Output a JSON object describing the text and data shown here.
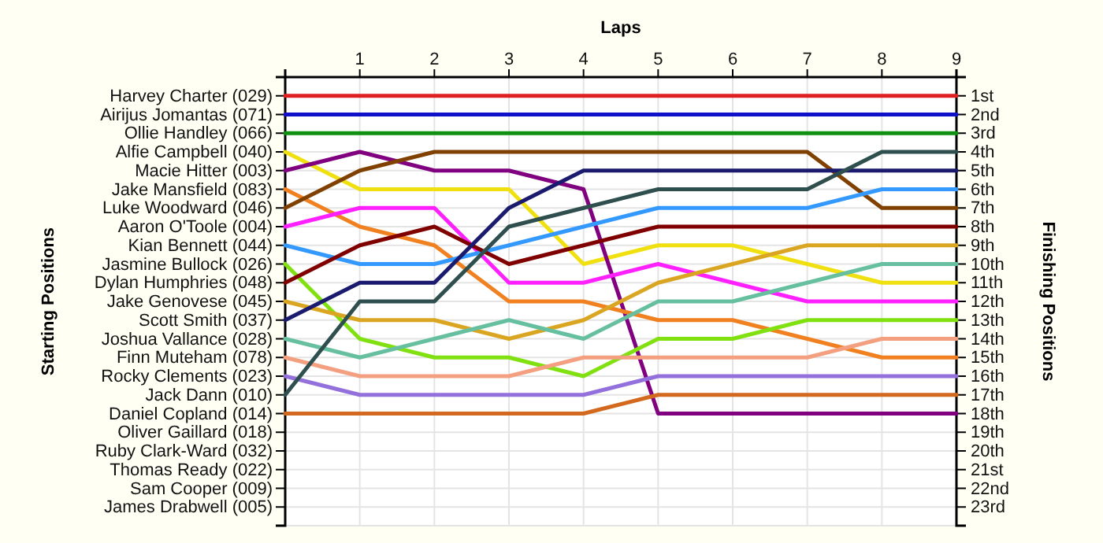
{
  "chart_data": {
    "type": "line",
    "xlabel": "Laps",
    "ylabel": "Finishing Positions",
    "x": [
      0,
      1,
      2,
      3,
      4,
      5,
      6,
      7,
      8,
      9
    ],
    "xlim": [
      0,
      9
    ],
    "xticks": [
      1,
      2,
      3,
      4,
      5,
      6,
      7,
      8,
      9
    ],
    "ylim": [
      24,
      0
    ],
    "yticks": [
      {
        "value": 1,
        "label": "1st"
      },
      {
        "value": 2,
        "label": "2nd"
      },
      {
        "value": 3,
        "label": "3rd"
      },
      {
        "value": 4,
        "label": "4th"
      },
      {
        "value": 5,
        "label": "5th"
      },
      {
        "value": 6,
        "label": "6th"
      },
      {
        "value": 7,
        "label": "7th"
      },
      {
        "value": 8,
        "label": "8th"
      },
      {
        "value": 9,
        "label": "9th"
      },
      {
        "value": 10,
        "label": "10th"
      },
      {
        "value": 11,
        "label": "11th"
      },
      {
        "value": 12,
        "label": "12th"
      },
      {
        "value": 13,
        "label": "13th"
      },
      {
        "value": 14,
        "label": "14th"
      },
      {
        "value": 15,
        "label": "15th"
      },
      {
        "value": 16,
        "label": "16th"
      },
      {
        "value": 17,
        "label": "17th"
      },
      {
        "value": 18,
        "label": "18th"
      },
      {
        "value": 19,
        "label": "19th"
      },
      {
        "value": 20,
        "label": "20th"
      },
      {
        "value": 21,
        "label": "21st"
      },
      {
        "value": 22,
        "label": "22nd"
      },
      {
        "value": 23,
        "label": "23rd"
      },
      {
        "value": 24,
        "label": null
      }
    ],
    "annotations": [
      "Harvey Charter (029)",
      "Airijus Jomantas (071)",
      "Ollie Handley (066)",
      "Alfie Campbell (040)",
      "Macie Hitter (003)",
      "Jake Mansfield (083)",
      "Luke Woodward (046)",
      "Aaron O'Toole (004)",
      "Kian Bennett (044)",
      "Jasmine Bullock (026)",
      "Dylan Humphries (048)",
      "Jake Genovese (045)",
      "Scott Smith (037)",
      "Joshua Vallance (028)",
      "Finn Muteham (078)",
      "Rocky Clements (023)",
      "Jack Dann (010)",
      "Daniel Copland (014)",
      "Oliver Gaillard (018)",
      "Ruby Clark-Ward (032)",
      "Thomas Ready (022)",
      "Sam Cooper (009)",
      "James Drabwell (005)",
      "Starting Positions"
    ],
    "grid": true,
    "marker": "none",
    "line_style": "solid",
    "series": [
      {
        "color": "#e02020",
        "values": [
          1,
          1,
          1,
          1,
          1,
          1,
          1,
          1,
          1,
          1
        ]
      },
      {
        "color": "#1010c8",
        "values": [
          2,
          2,
          2,
          2,
          2,
          2,
          2,
          2,
          2,
          2
        ]
      },
      {
        "color": "#109010",
        "values": [
          3,
          3,
          3,
          3,
          3,
          3,
          3,
          3,
          3,
          3
        ]
      },
      {
        "color": "#f0e010",
        "values": [
          4,
          6,
          6,
          6,
          10,
          9,
          9,
          10,
          11,
          11
        ]
      },
      {
        "color": "#800080",
        "values": [
          5,
          4,
          5,
          5,
          6,
          18,
          18,
          18,
          18,
          18
        ]
      },
      {
        "color": "#f08020",
        "values": [
          6,
          8,
          9,
          12,
          12,
          13,
          13,
          14,
          15,
          15
        ]
      },
      {
        "color": "#804000",
        "values": [
          7,
          5,
          4,
          4,
          4,
          4,
          4,
          4,
          7,
          7
        ]
      },
      {
        "color": "#ff20ff",
        "values": [
          8,
          7,
          7,
          11,
          11,
          10,
          11,
          12,
          12,
          12
        ]
      },
      {
        "color": "#3399ff",
        "values": [
          9,
          10,
          10,
          9,
          8,
          7,
          7,
          7,
          6,
          6
        ]
      },
      {
        "color": "#80e010",
        "values": [
          10,
          14,
          15,
          15,
          16,
          14,
          14,
          13,
          13,
          13
        ]
      },
      {
        "color": "#800000",
        "values": [
          11,
          9,
          8,
          10,
          9,
          8,
          8,
          8,
          8,
          8
        ]
      },
      {
        "color": "#daa520",
        "values": [
          12,
          13,
          13,
          14,
          13,
          11,
          10,
          9,
          9,
          9
        ]
      },
      {
        "color": "#1a1a6e",
        "values": [
          13,
          11,
          11,
          7,
          5,
          5,
          5,
          5,
          5,
          5
        ]
      },
      {
        "color": "#66c0a0",
        "values": [
          14,
          15,
          14,
          13,
          14,
          12,
          12,
          11,
          10,
          10
        ]
      },
      {
        "color": "#f4a080",
        "values": [
          15,
          16,
          16,
          16,
          15,
          15,
          15,
          15,
          14,
          14
        ]
      },
      {
        "color": "#9370db",
        "values": [
          16,
          17,
          17,
          17,
          17,
          16,
          16,
          16,
          16,
          16
        ]
      },
      {
        "color": "#2f4f4f",
        "values": [
          17,
          12,
          12,
          8,
          7,
          6,
          6,
          6,
          4,
          4
        ]
      },
      {
        "color": "#d2691e",
        "values": [
          18,
          18,
          18,
          18,
          18,
          17,
          17,
          17,
          17,
          17
        ]
      }
    ]
  }
}
